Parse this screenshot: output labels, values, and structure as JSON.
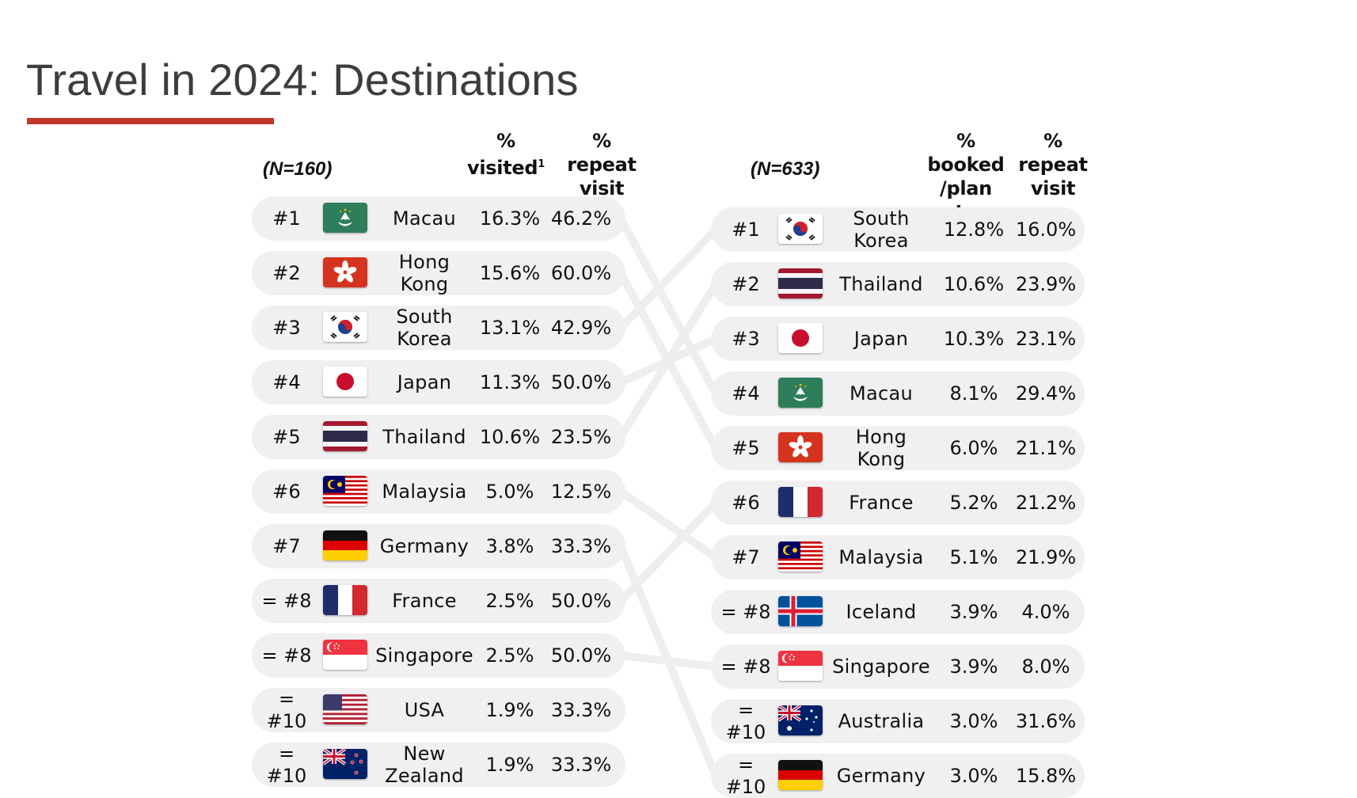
{
  "title": "Travel in 2024: Destinations",
  "colors": {
    "accent": "#c0392b",
    "row_bg": "#f0f0f0",
    "connector": "#eeeeee"
  },
  "left": {
    "sample": "(N=160)",
    "headers": {
      "col1_symbol": "%",
      "col1_label": "visited",
      "col1_note": "1",
      "col2_symbol": "%",
      "col2_label": "repeat visit"
    },
    "rows": [
      {
        "rank": "#1",
        "country": "Macau",
        "flag_icon": "macau-flag-icon",
        "pct": "16.3%",
        "repeat": "46.2%"
      },
      {
        "rank": "#2",
        "country": "Hong Kong",
        "flag_icon": "hong-kong-flag-icon",
        "pct": "15.6%",
        "repeat": "60.0%"
      },
      {
        "rank": "#3",
        "country": "South Korea",
        "flag_icon": "south-korea-flag-icon",
        "pct": "13.1%",
        "repeat": "42.9%"
      },
      {
        "rank": "#4",
        "country": "Japan",
        "flag_icon": "japan-flag-icon",
        "pct": "11.3%",
        "repeat": "50.0%"
      },
      {
        "rank": "#5",
        "country": "Thailand",
        "flag_icon": "thailand-flag-icon",
        "pct": "10.6%",
        "repeat": "23.5%"
      },
      {
        "rank": "#6",
        "country": "Malaysia",
        "flag_icon": "malaysia-flag-icon",
        "pct": "5.0%",
        "repeat": "12.5%"
      },
      {
        "rank": "#7",
        "country": "Germany",
        "flag_icon": "germany-flag-icon",
        "pct": "3.8%",
        "repeat": "33.3%"
      },
      {
        "rank": "= #8",
        "country": "France",
        "flag_icon": "france-flag-icon",
        "pct": "2.5%",
        "repeat": "50.0%"
      },
      {
        "rank": "= #8",
        "country": "Singapore",
        "flag_icon": "singapore-flag-icon",
        "pct": "2.5%",
        "repeat": "50.0%"
      },
      {
        "rank": "= #10",
        "country": "USA",
        "flag_icon": "usa-flag-icon",
        "pct": "1.9%",
        "repeat": "33.3%"
      },
      {
        "rank": "= #10",
        "country": "New Zealand",
        "flag_icon": "new-zealand-flag-icon",
        "pct": "1.9%",
        "repeat": "33.3%"
      }
    ]
  },
  "right": {
    "sample": "(N=633)",
    "headers": {
      "col1_symbol": "%",
      "col1_label": "booked /plan to",
      "col2_symbol": "%",
      "col2_label": "repeat visit"
    },
    "rows": [
      {
        "rank": "#1",
        "country": "South Korea",
        "flag_icon": "south-korea-flag-icon",
        "pct": "12.8%",
        "repeat": "16.0%"
      },
      {
        "rank": "#2",
        "country": "Thailand",
        "flag_icon": "thailand-flag-icon",
        "pct": "10.6%",
        "repeat": "23.9%"
      },
      {
        "rank": "#3",
        "country": "Japan",
        "flag_icon": "japan-flag-icon",
        "pct": "10.3%",
        "repeat": "23.1%"
      },
      {
        "rank": "#4",
        "country": "Macau",
        "flag_icon": "macau-flag-icon",
        "pct": "8.1%",
        "repeat": "29.4%"
      },
      {
        "rank": "#5",
        "country": "Hong Kong",
        "flag_icon": "hong-kong-flag-icon",
        "pct": "6.0%",
        "repeat": "21.1%"
      },
      {
        "rank": "#6",
        "country": "France",
        "flag_icon": "france-flag-icon",
        "pct": "5.2%",
        "repeat": "21.2%"
      },
      {
        "rank": "#7",
        "country": "Malaysia",
        "flag_icon": "malaysia-flag-icon",
        "pct": "5.1%",
        "repeat": "21.9%"
      },
      {
        "rank": "= #8",
        "country": "Iceland",
        "flag_icon": "iceland-flag-icon",
        "pct": "3.9%",
        "repeat": "4.0%"
      },
      {
        "rank": "= #8",
        "country": "Singapore",
        "flag_icon": "singapore-flag-icon",
        "pct": "3.9%",
        "repeat": "8.0%"
      },
      {
        "rank": "= #10",
        "country": "Australia",
        "flag_icon": "australia-flag-icon",
        "pct": "3.0%",
        "repeat": "31.6%"
      },
      {
        "rank": "= #10",
        "country": "Germany",
        "flag_icon": "germany-flag-icon",
        "pct": "3.0%",
        "repeat": "15.8%"
      }
    ]
  }
}
